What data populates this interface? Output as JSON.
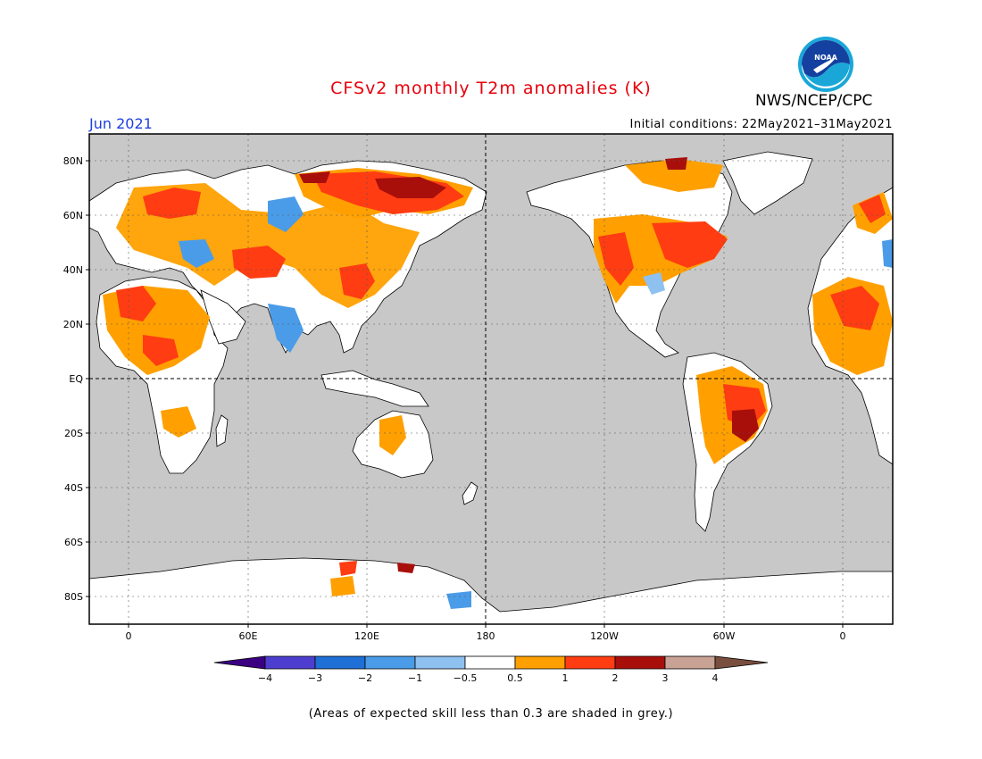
{
  "header": {
    "title": "CFSv2 monthly T2m anomalies (K)",
    "period": "Jun 2021",
    "initial_conditions": "Initial conditions: 22May2021–31May2021",
    "agency": "NWS/NCEP/CPC",
    "logo_text": "NOAA"
  },
  "axes": {
    "lat_labels": [
      "80N",
      "60N",
      "40N",
      "20N",
      "EQ",
      "20S",
      "40S",
      "60S",
      "80S"
    ],
    "lon_labels": [
      "0",
      "60E",
      "120E",
      "180",
      "120W",
      "60W",
      "0"
    ]
  },
  "colorbar": {
    "labels": [
      "−4",
      "−3",
      "−2",
      "−1",
      "−0.5",
      "0.5",
      "1",
      "2",
      "3",
      "4"
    ],
    "colors": [
      "#3b0082",
      "#4d3ed0",
      "#1e6fd6",
      "#4a9ce8",
      "#8ec1f0",
      "#ffffff",
      "#ffa000",
      "#ff3c12",
      "#a80f0b",
      "#c9a296",
      "#7a4e3e"
    ]
  },
  "footnote": "(Areas of expected skill less than 0.3 are shaded in grey.)",
  "map_colors": {
    "ocean_grey": "#c8c8c8",
    "land_white": "#ffffff",
    "anom_orange": "#ffa000",
    "anom_red": "#ff3c12",
    "anom_darkred": "#a80f0b",
    "anom_lightblue": "#8ec1f0",
    "anom_blue": "#4a9ce8"
  }
}
